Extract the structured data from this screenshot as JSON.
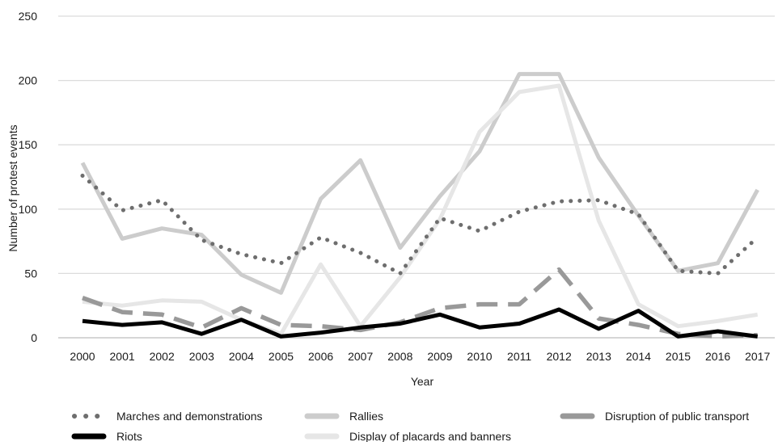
{
  "chart_data": {
    "type": "line",
    "xlabel": "Year",
    "ylabel": "Number of protest events",
    "ylim": [
      0,
      250
    ],
    "yticks": [
      0,
      50,
      100,
      150,
      200,
      250
    ],
    "grid": "horizontal",
    "legend_position": "bottom",
    "x": [
      "2000",
      "2001",
      "2002",
      "2003",
      "2004",
      "2005",
      "2006",
      "2007",
      "2008",
      "2009",
      "2010",
      "2011",
      "2012",
      "2013",
      "2014",
      "2015",
      "2016",
      "2017"
    ],
    "series": [
      {
        "name": "Marches and demonstrations",
        "color": "#6e6e6e",
        "style": "dotted",
        "values": [
          126,
          99,
          107,
          76,
          65,
          58,
          78,
          66,
          50,
          93,
          83,
          98,
          106,
          107,
          96,
          52,
          50,
          78
        ]
      },
      {
        "name": "Rallies",
        "color": "#cccccc",
        "style": "solid",
        "values": [
          136,
          77,
          85,
          80,
          49,
          35,
          108,
          138,
          70,
          110,
          145,
          205,
          205,
          140,
          95,
          52,
          58,
          115
        ]
      },
      {
        "name": "Disruption of public transport",
        "color": "#999999",
        "style": "dashed",
        "values": [
          31,
          20,
          18,
          8,
          23,
          10,
          9,
          6,
          12,
          23,
          26,
          26,
          53,
          15,
          10,
          3,
          1,
          2
        ]
      },
      {
        "name": "Riots",
        "color": "#000000",
        "style": "solid",
        "values": [
          13,
          10,
          12,
          3,
          14,
          1,
          4,
          8,
          11,
          18,
          8,
          11,
          22,
          7,
          21,
          1,
          5,
          1
        ]
      },
      {
        "name": "Display of placards and banners",
        "color": "#e6e6e6",
        "style": "solid",
        "values": [
          28,
          25,
          29,
          28,
          14,
          3,
          57,
          9,
          47,
          92,
          160,
          191,
          196,
          91,
          26,
          9,
          13,
          18
        ]
      }
    ]
  }
}
